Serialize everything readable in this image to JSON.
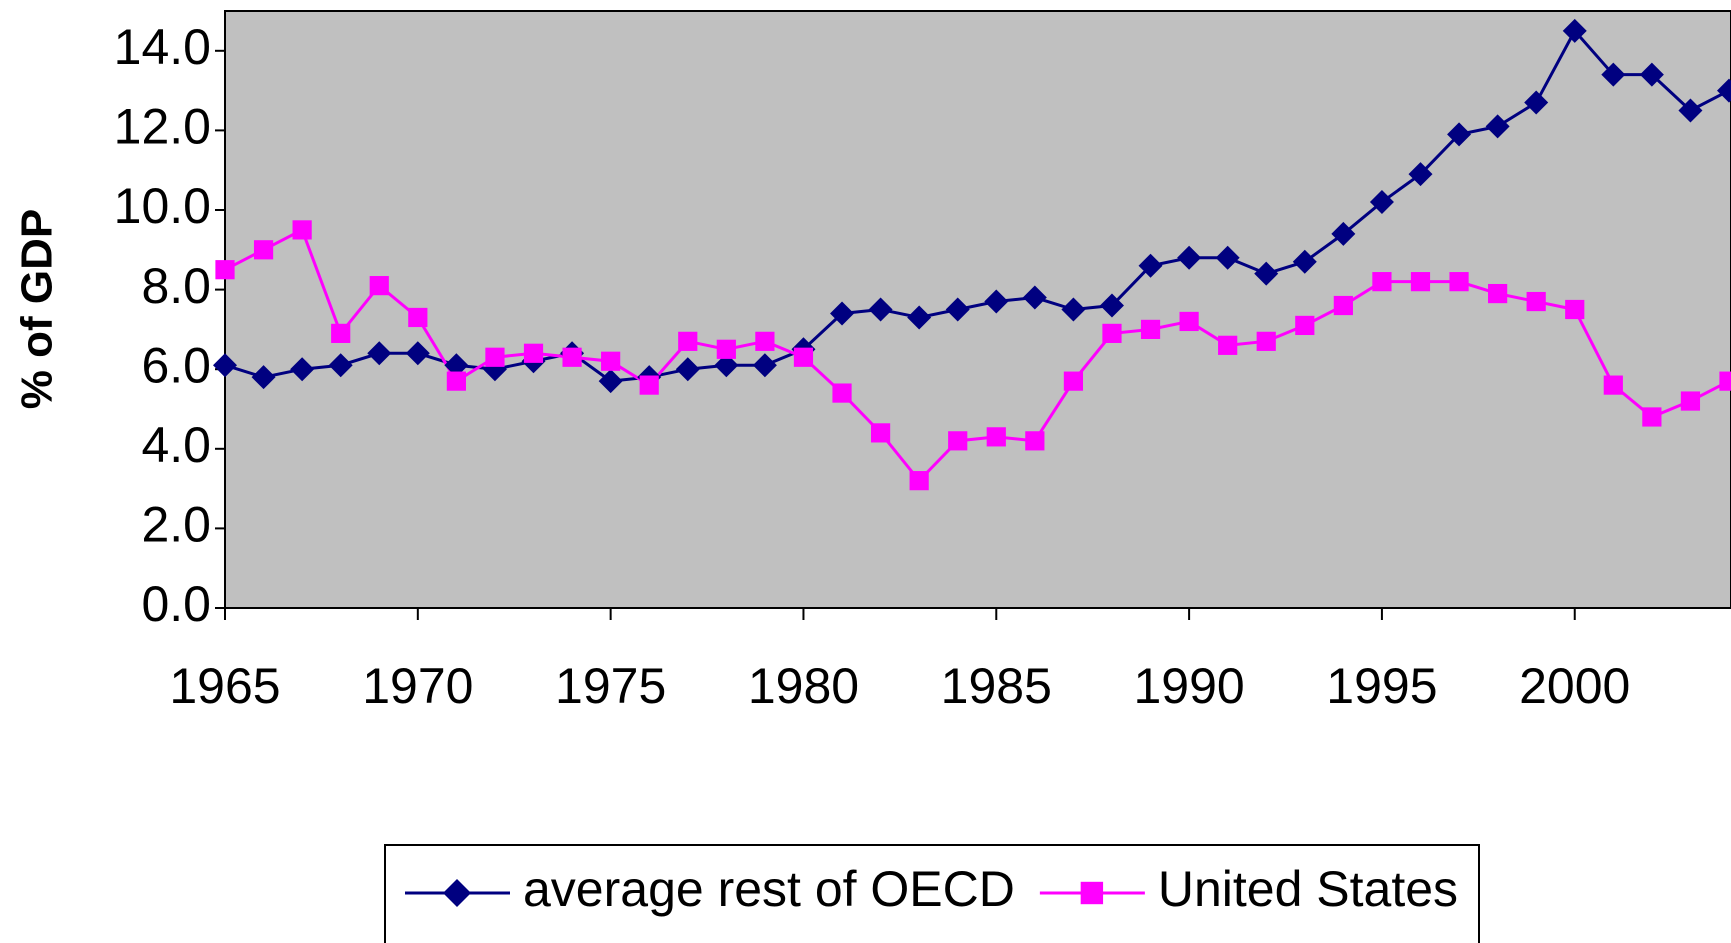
{
  "chart_data": {
    "type": "line",
    "y_label": "% of GDP",
    "x": [
      1965,
      1966,
      1967,
      1968,
      1969,
      1970,
      1971,
      1972,
      1973,
      1974,
      1975,
      1976,
      1977,
      1978,
      1979,
      1980,
      1981,
      1982,
      1983,
      1984,
      1985,
      1986,
      1987,
      1988,
      1989,
      1990,
      1991,
      1992,
      1993,
      1994,
      1995,
      1996,
      1997,
      1998,
      1999,
      2000,
      2001,
      2002,
      2003,
      2004
    ],
    "series": [
      {
        "name": "average rest of OECD",
        "color": "#000080",
        "marker": "diamond",
        "values": [
          6.1,
          5.8,
          6.0,
          6.1,
          6.4,
          6.4,
          6.1,
          6.0,
          6.2,
          6.4,
          5.7,
          5.8,
          6.0,
          6.1,
          6.1,
          6.5,
          7.4,
          7.5,
          7.3,
          7.5,
          7.7,
          7.8,
          7.5,
          7.6,
          8.6,
          8.8,
          8.8,
          8.4,
          8.7,
          9.4,
          10.2,
          10.9,
          11.9,
          12.1,
          12.7,
          14.5,
          13.4,
          13.4,
          12.5,
          13.0
        ]
      },
      {
        "name": "United States",
        "color": "#ff00ff",
        "marker": "square",
        "values": [
          8.5,
          9.0,
          9.5,
          6.9,
          8.1,
          7.3,
          5.7,
          6.3,
          6.4,
          6.3,
          6.2,
          5.6,
          6.7,
          6.5,
          6.7,
          6.3,
          5.4,
          4.4,
          3.2,
          4.2,
          4.3,
          4.2,
          5.7,
          6.9,
          7.0,
          7.2,
          6.6,
          6.7,
          7.1,
          7.6,
          8.2,
          8.2,
          8.2,
          7.9,
          7.7,
          7.5,
          5.6,
          4.8,
          5.2,
          5.7
        ]
      }
    ],
    "xlim": [
      1965,
      2004
    ],
    "xticks": [
      1965,
      1970,
      1975,
      1980,
      1985,
      1990,
      1995,
      2000
    ],
    "ylim": [
      0,
      15
    ],
    "yticks": [
      {
        "value": 0,
        "label": "0.0"
      },
      {
        "value": 2,
        "label": "2.0"
      },
      {
        "value": 4,
        "label": "4.0"
      },
      {
        "value": 6,
        "label": "6.0"
      },
      {
        "value": 8,
        "label": "8.0"
      },
      {
        "value": 10,
        "label": "10.0"
      },
      {
        "value": 12,
        "label": "12.0"
      },
      {
        "value": 14,
        "label": "14.0"
      }
    ],
    "plot_background": "#c0c0c0",
    "legend": "bottom"
  }
}
